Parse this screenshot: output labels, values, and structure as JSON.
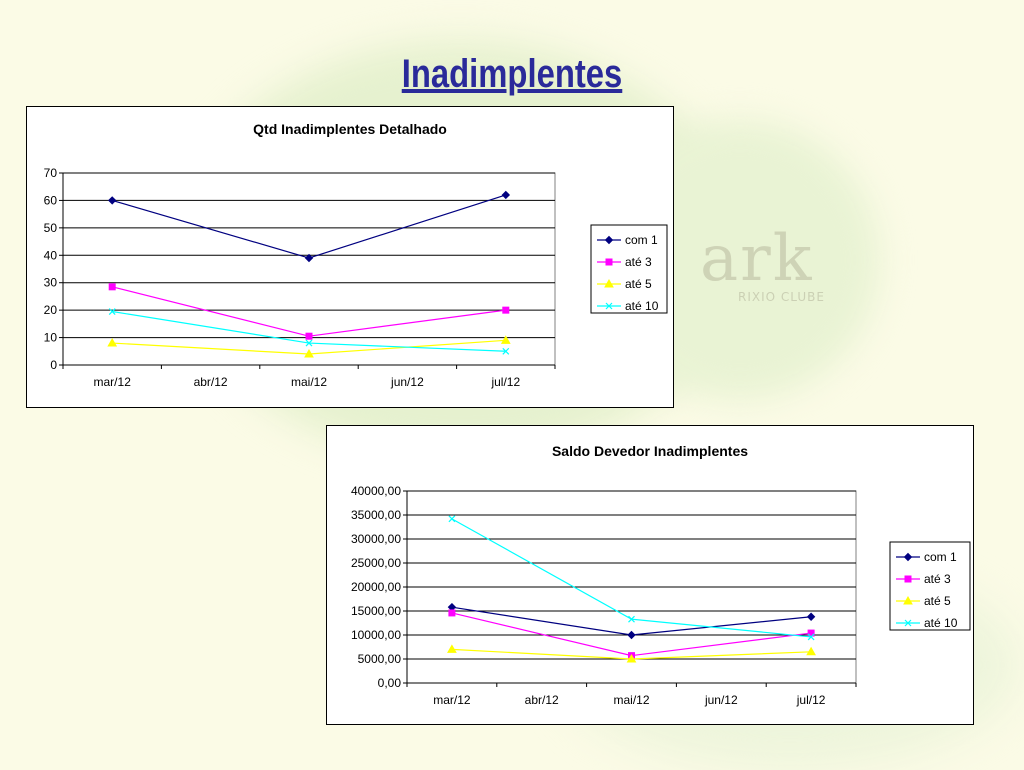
{
  "page": {
    "title": "Inadimplentes"
  },
  "background": {
    "watermark_text": "ark",
    "watermark_sub": "RIXIO CLUBE"
  },
  "colors": {
    "com_1": "#000080",
    "ate_3": "#ff00ff",
    "ate_5": "#ffff00",
    "ate_10": "#00ffff",
    "title": "#2a2a9a"
  },
  "chart_data": [
    {
      "type": "line",
      "title": "Qtd Inadimplentes Detalhado",
      "categories": [
        "mar/12",
        "abr/12",
        "mai/12",
        "jun/12",
        "jul/12"
      ],
      "yticks": [
        "0",
        "10",
        "20",
        "30",
        "40",
        "50",
        "60",
        "70"
      ],
      "ylim": [
        0,
        70
      ],
      "grid": true,
      "legend_position": "right",
      "series": [
        {
          "name": "com 1",
          "marker": "diamond",
          "points": [
            [
              0,
              60
            ],
            [
              2,
              39
            ],
            [
              4,
              62
            ]
          ]
        },
        {
          "name": "até 3",
          "marker": "square",
          "points": [
            [
              0,
              28.5
            ],
            [
              2,
              10.5
            ],
            [
              4,
              20
            ]
          ]
        },
        {
          "name": "até 5",
          "marker": "triangle",
          "points": [
            [
              0,
              8
            ],
            [
              2,
              4
            ],
            [
              4,
              9
            ]
          ]
        },
        {
          "name": "até 10",
          "marker": "x",
          "points": [
            [
              0,
              19.5
            ],
            [
              2,
              8
            ],
            [
              4,
              5
            ]
          ]
        }
      ]
    },
    {
      "type": "line",
      "title": "Saldo Devedor Inadimplentes",
      "categories": [
        "mar/12",
        "abr/12",
        "mai/12",
        "jun/12",
        "jul/12"
      ],
      "yticks": [
        "0,00",
        "5000,00",
        "10000,00",
        "15000,00",
        "20000,00",
        "25000,00",
        "30000,00",
        "35000,00",
        "40000,00"
      ],
      "ylim": [
        0,
        40000
      ],
      "grid": true,
      "legend_position": "right",
      "series": [
        {
          "name": "com 1",
          "marker": "diamond",
          "points": [
            [
              0,
              15800
            ],
            [
              2,
              10000
            ],
            [
              4,
              13800
            ]
          ]
        },
        {
          "name": "até 3",
          "marker": "square",
          "points": [
            [
              0,
              14600
            ],
            [
              2,
              5700
            ],
            [
              4,
              10400
            ]
          ]
        },
        {
          "name": "até 5",
          "marker": "triangle",
          "points": [
            [
              0,
              7000
            ],
            [
              2,
              5000
            ],
            [
              4,
              6500
            ]
          ]
        },
        {
          "name": "até 10",
          "marker": "x",
          "points": [
            [
              0,
              34200
            ],
            [
              2,
              13300
            ],
            [
              4,
              9600
            ]
          ]
        }
      ]
    }
  ]
}
